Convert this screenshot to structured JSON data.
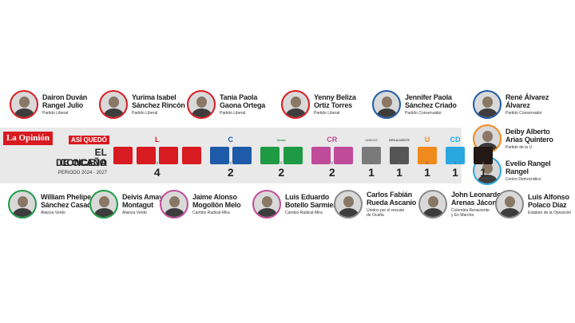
{
  "brand": "La Opinión",
  "heading": {
    "kicker": "ASÍ QUEDÓ",
    "line1": "EL CONCEJO",
    "line2": "DE OCAÑA",
    "period": "PERIODO 2024 - 2027"
  },
  "top_members": [
    {
      "name1": "Dairon Duván",
      "name2": "Rangel Julio",
      "party": "Partido Liberal",
      "ring": "#d81a21"
    },
    {
      "name1": "Yurima Isabel",
      "name2": "Sánchez Rincón",
      "party": "Partido Liberal",
      "ring": "#d81a21"
    },
    {
      "name1": "Tania Paola",
      "name2": "Gaona Ortega",
      "party": "Partido Liberal",
      "ring": "#d81a21"
    },
    {
      "name1": "Yenny Beliza",
      "name2": "Ortiz Torres",
      "party": "Partido Liberal",
      "ring": "#d81a21"
    },
    {
      "name1": "Jennifer Paola",
      "name2": "Sánchez Criado",
      "party": "Partido Conservador",
      "ring": "#1f5aa8"
    },
    {
      "name1": "René Álvarez",
      "name2": "Álvarez",
      "party": "Partido Conservador",
      "ring": "#1f5aa8"
    }
  ],
  "right_members": [
    {
      "name1": "Deiby Alberto",
      "name2": "Arias Quintero",
      "party": "Partido de la U",
      "ring": "#f08a1c"
    },
    {
      "name1": "Evelio Rangel",
      "name2": "Rangel",
      "party": "Centro Democrático",
      "ring": "#29a8e0"
    }
  ],
  "bottom_members": [
    {
      "name1": "William Phelipe",
      "name2": "Sánchez Casadiego",
      "party": "Alianza Verde",
      "ring": "#1f9a44"
    },
    {
      "name1": "Deivis Amaya",
      "name2": "Montagut",
      "party": "Alianza Verde",
      "ring": "#1f9a44"
    },
    {
      "name1": "Jaime Alonso",
      "name2": "Mogollón Melo",
      "party": "Cambio Radical-Mira",
      "ring": "#c04b9a"
    },
    {
      "name1": "Luis Eduardo",
      "name2": "Botello Sarmiento",
      "party": "Cambio Radical-Mira",
      "ring": "#c04b9a"
    },
    {
      "name1": "Carlos Fabián",
      "name2": "Rueda Ascanio",
      "party": "Unidos por el rescate",
      "party2": "de Ocaña",
      "ring": "#888888"
    },
    {
      "name1": "John Leonardo",
      "name2": "Arenas Jácome",
      "party": "Colombia Renaciente",
      "party2": "y En Marcha",
      "ring": "#888888"
    },
    {
      "name1": "Luis Alfonso",
      "name2": "Polaco Díaz",
      "party": "Estatuto de la Oposición",
      "ring": "#888888"
    }
  ],
  "parties": [
    {
      "logo": "L",
      "color": "#d81a21",
      "seats": 4
    },
    {
      "logo": "C",
      "color": "#1f5aa8",
      "seats": 2
    },
    {
      "logo": "Verde",
      "color": "#1f9a44",
      "seats": 2
    },
    {
      "logo": "CR",
      "color": "#c04b9a",
      "seats": 2
    },
    {
      "logo": "UNIDOS",
      "color": "#7a7a7a",
      "seats": 1
    },
    {
      "logo": "RENACIENTE",
      "color": "#555555",
      "seats": 1
    },
    {
      "logo": "U",
      "color": "#f08a1c",
      "seats": 1
    },
    {
      "logo": "CD",
      "color": "#29a8e0",
      "seats": 1
    },
    {
      "logo": "",
      "color": "#231815",
      "seats": 1
    }
  ]
}
